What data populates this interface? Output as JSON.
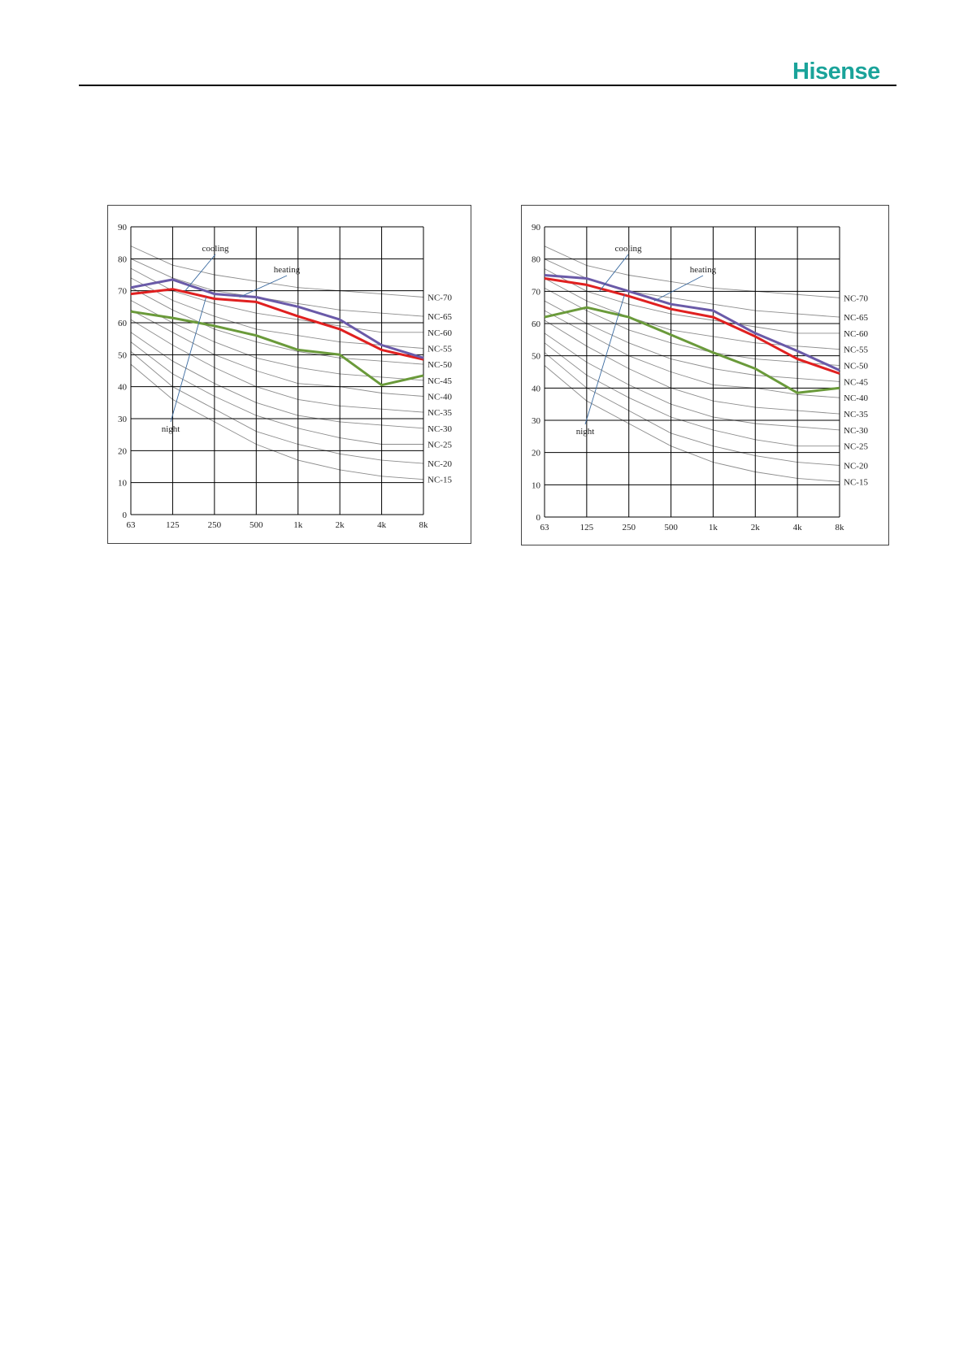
{
  "header": {
    "logo_text": "Hisense",
    "brand_color": "#1aa39a"
  },
  "chart_data": [
    {
      "type": "line",
      "x": [
        "63",
        "125",
        "250",
        "500",
        "1k",
        "2k",
        "4k",
        "8k"
      ],
      "ylim": [
        0,
        90
      ],
      "yticks": [
        0,
        10,
        20,
        30,
        40,
        50,
        60,
        70,
        80,
        90
      ],
      "grid": true,
      "series": [
        {
          "name": "cooling",
          "color": "#6a5aa8",
          "values": [
            71,
            73.5,
            69,
            68,
            65,
            61,
            53,
            49
          ]
        },
        {
          "name": "heating",
          "color": "#e02020",
          "values": [
            69,
            70.5,
            67.5,
            66.5,
            62,
            58,
            51.5,
            48.5
          ]
        },
        {
          "name": "night",
          "color": "#6a9a3a",
          "values": [
            63.5,
            61.5,
            59,
            56,
            51.5,
            50,
            40.5,
            43.5
          ]
        }
      ],
      "nc_curves": {
        "labels": [
          "NC-70",
          "NC-65",
          "NC-60",
          "NC-55",
          "NC-50",
          "NC-45",
          "NC-40",
          "NC-35",
          "NC-30",
          "NC-25",
          "NC-20",
          "NC-15"
        ],
        "values": [
          [
            84,
            78,
            75,
            73,
            71,
            70,
            69,
            68
          ],
          [
            80,
            74,
            70,
            68,
            66,
            64,
            63,
            62
          ],
          [
            77,
            70,
            66,
            63,
            61,
            59,
            57,
            57
          ],
          [
            74,
            67,
            62,
            58,
            56,
            54,
            53,
            52
          ],
          [
            71,
            64,
            58,
            54,
            51,
            49,
            48,
            47
          ],
          [
            67,
            60,
            54,
            49,
            46,
            44,
            43,
            42
          ],
          [
            64,
            57,
            50,
            45,
            41,
            40,
            38,
            37
          ],
          [
            61,
            53,
            46,
            40,
            36,
            34,
            33,
            32
          ],
          [
            57,
            48,
            41,
            35,
            31,
            29,
            28,
            27
          ],
          [
            54,
            44,
            37,
            31,
            27,
            24,
            22,
            22
          ],
          [
            51,
            40,
            33,
            26,
            22,
            19,
            17,
            16
          ],
          [
            47,
            36,
            29,
            22,
            17,
            14,
            12,
            11
          ]
        ]
      }
    },
    {
      "type": "line",
      "x": [
        "63",
        "125",
        "250",
        "500",
        "1k",
        "2k",
        "4k",
        "8k"
      ],
      "ylim": [
        0,
        90
      ],
      "yticks": [
        0,
        10,
        20,
        30,
        40,
        50,
        60,
        70,
        80,
        90
      ],
      "grid": true,
      "series": [
        {
          "name": "cooling",
          "color": "#6a5aa8",
          "values": [
            75,
            74,
            70,
            66,
            64,
            57,
            51.5,
            45.5
          ]
        },
        {
          "name": "heating",
          "color": "#e02020",
          "values": [
            74,
            72,
            68.5,
            64.5,
            62,
            56,
            49,
            44.5
          ]
        },
        {
          "name": "night",
          "color": "#6a9a3a",
          "values": [
            62,
            65,
            62,
            56.5,
            51,
            46,
            38.5,
            40
          ]
        }
      ],
      "nc_curves": {
        "labels": [
          "NC-70",
          "NC-65",
          "NC-60",
          "NC-55",
          "NC-50",
          "NC-45",
          "NC-40",
          "NC-35",
          "NC-30",
          "NC-25",
          "NC-20",
          "NC-15"
        ],
        "values": [
          [
            84,
            78,
            75,
            73,
            71,
            70,
            69,
            68
          ],
          [
            80,
            74,
            70,
            68,
            66,
            64,
            63,
            62
          ],
          [
            77,
            70,
            66,
            63,
            61,
            59,
            57,
            57
          ],
          [
            74,
            67,
            62,
            58,
            56,
            54,
            53,
            52
          ],
          [
            71,
            64,
            58,
            54,
            51,
            49,
            48,
            47
          ],
          [
            67,
            60,
            54,
            49,
            46,
            44,
            43,
            42
          ],
          [
            64,
            57,
            50,
            45,
            41,
            40,
            38,
            37
          ],
          [
            61,
            53,
            46,
            40,
            36,
            34,
            33,
            32
          ],
          [
            57,
            48,
            41,
            35,
            31,
            29,
            28,
            27
          ],
          [
            54,
            44,
            37,
            31,
            27,
            24,
            22,
            22
          ],
          [
            51,
            40,
            33,
            26,
            22,
            19,
            17,
            16
          ],
          [
            47,
            36,
            29,
            22,
            17,
            14,
            12,
            11
          ]
        ]
      }
    }
  ]
}
